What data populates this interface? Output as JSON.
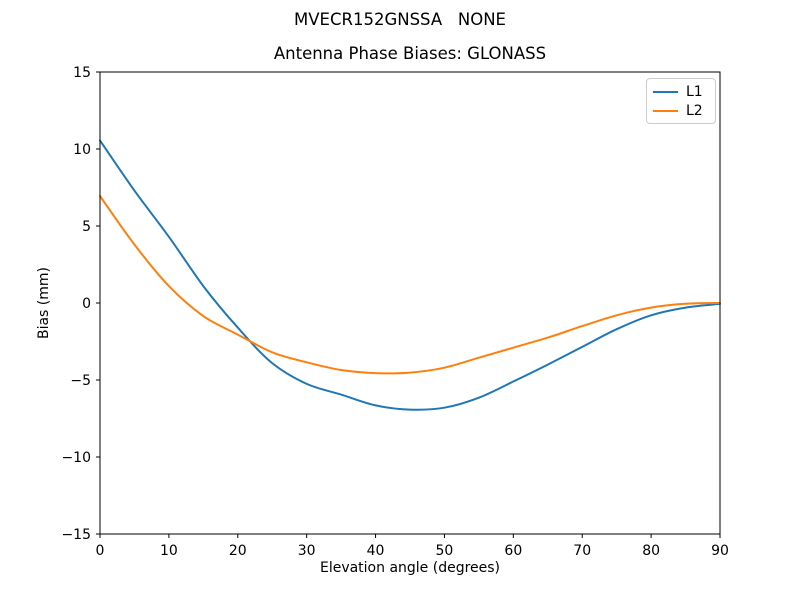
{
  "figure": {
    "suptitle": "MVECR152GNSSA   NONE",
    "background_color": "#ffffff",
    "spine_color": "#000000"
  },
  "chart_data": {
    "type": "line",
    "title": "Antenna Phase Biases: GLONASS",
    "xlabel": "Elevation angle (degrees)",
    "ylabel": "Bias (mm)",
    "xlim": [
      0,
      90
    ],
    "ylim": [
      -15,
      15
    ],
    "xticks": [
      0,
      10,
      20,
      30,
      40,
      50,
      60,
      70,
      80,
      90
    ],
    "yticks": [
      15,
      10,
      5,
      0,
      -5,
      -10,
      -15
    ],
    "grid": false,
    "legend_position": "upper right",
    "x": [
      0,
      5,
      10,
      15,
      20,
      25,
      30,
      35,
      40,
      45,
      50,
      55,
      60,
      65,
      70,
      75,
      80,
      85,
      90
    ],
    "series": [
      {
        "name": "L1",
        "color": "#1f77b4",
        "values": [
          10.55,
          7.3,
          4.3,
          1.1,
          -1.6,
          -3.9,
          -5.25,
          -5.95,
          -6.65,
          -6.92,
          -6.8,
          -6.15,
          -5.1,
          -4.0,
          -2.85,
          -1.7,
          -0.8,
          -0.3,
          -0.05
        ]
      },
      {
        "name": "L2",
        "color": "#ff7f0e",
        "values": [
          6.95,
          3.8,
          1.1,
          -0.85,
          -2.05,
          -3.2,
          -3.85,
          -4.35,
          -4.55,
          -4.52,
          -4.2,
          -3.55,
          -2.9,
          -2.25,
          -1.5,
          -0.8,
          -0.3,
          -0.05,
          0.0
        ]
      }
    ]
  }
}
